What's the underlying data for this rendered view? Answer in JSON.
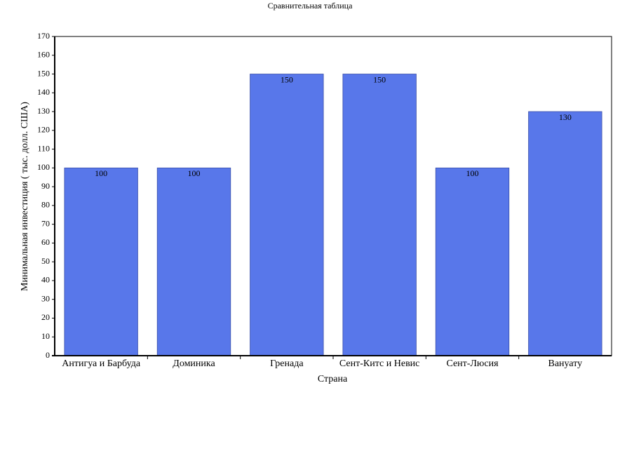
{
  "chart_data": {
    "type": "bar",
    "title": "Сравнительная таблица",
    "x_label": "Страна",
    "y_label": "Минимальная инвестиция ( тыс. долл. США)",
    "categories": [
      "Антигуа и Барбуда",
      "Доминика",
      "Гренада",
      "Сент-Китс и Невис",
      "Сент-Люсия",
      "Вануату"
    ],
    "values": [
      100,
      100,
      150,
      150,
      100,
      130
    ],
    "color": "#5877ea",
    "ylim": [
      0,
      170
    ],
    "yticks": [
      0,
      10,
      20,
      30,
      40,
      50,
      60,
      70,
      80,
      90,
      100,
      110,
      120,
      130,
      140,
      150,
      160,
      170
    ],
    "grid": false
  }
}
